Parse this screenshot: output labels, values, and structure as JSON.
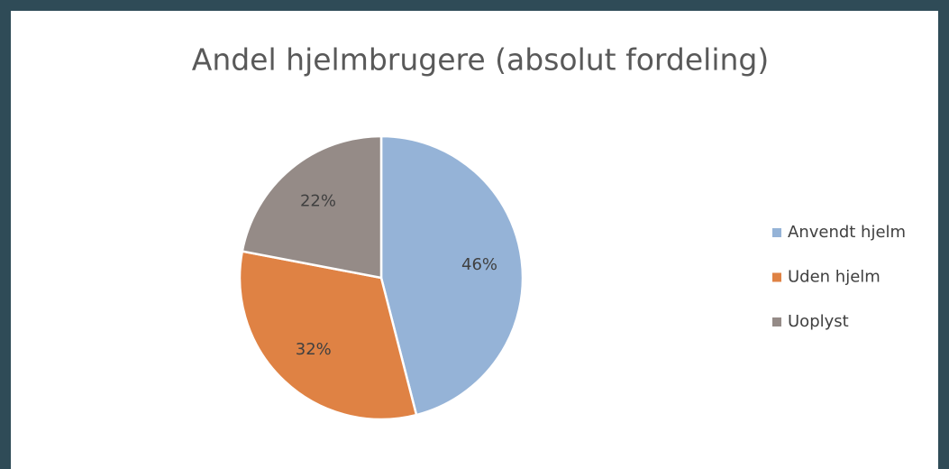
{
  "chart_data": {
    "type": "pie",
    "title": "Andel hjelmbrugere (absolut fordeling)",
    "categories": [
      "Anvendt hjelm",
      "Uden hjelm",
      "Uoplyst"
    ],
    "values": [
      46,
      32,
      22
    ],
    "value_labels": [
      "46%",
      "32%",
      "22%"
    ],
    "colors": [
      "#95b3d7",
      "#df8244",
      "#958b87"
    ],
    "legend": "right"
  }
}
